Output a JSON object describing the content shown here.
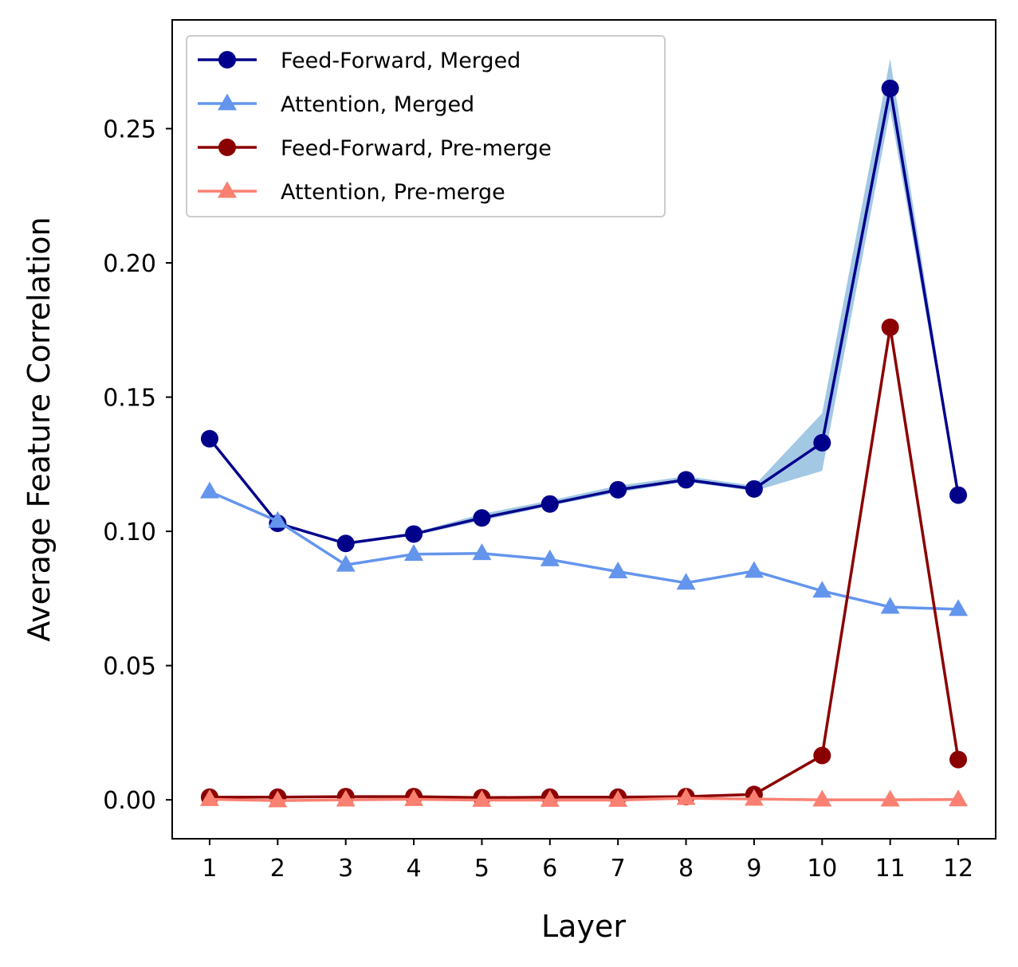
{
  "chart_data": {
    "type": "line",
    "title": "",
    "xlabel": "Layer",
    "ylabel": "Average Feature Correlation",
    "x": [
      1,
      2,
      3,
      4,
      5,
      6,
      7,
      8,
      9,
      10,
      11,
      12
    ],
    "xlim": [
      0.45,
      12.55
    ],
    "ylim": [
      -0.0145,
      0.2905
    ],
    "xticks": [
      "1",
      "2",
      "3",
      "4",
      "5",
      "6",
      "7",
      "8",
      "9",
      "10",
      "11",
      "12"
    ],
    "yticks": [
      "0.00",
      "0.05",
      "0.10",
      "0.15",
      "0.20",
      "0.25"
    ],
    "ytick_values": [
      0.0,
      0.05,
      0.1,
      0.15,
      0.2,
      0.25
    ],
    "grid": false,
    "legend_position": "top-left",
    "series": [
      {
        "name": "Feed-Forward, Merged",
        "marker": "circle",
        "color": "#00008b",
        "values": [
          0.1345,
          0.103,
          0.0955,
          0.099,
          0.105,
          0.1102,
          0.1155,
          0.1192,
          0.1158,
          0.133,
          0.265,
          0.1135
        ],
        "band": {
          "color": "#a3c8e4",
          "lower": [
            0.134,
            0.1025,
            0.095,
            0.0985,
            0.104,
            0.1095,
            0.1145,
            0.1185,
            0.115,
            0.1225,
            0.257,
            0.113
          ],
          "upper": [
            0.135,
            0.1035,
            0.096,
            0.0995,
            0.1065,
            0.1115,
            0.117,
            0.1205,
            0.117,
            0.144,
            0.276,
            0.114
          ]
        }
      },
      {
        "name": "Attention, Merged",
        "marker": "triangle",
        "color": "#6495ed",
        "values": [
          0.1148,
          0.1038,
          0.0875,
          0.0915,
          0.0918,
          0.0895,
          0.085,
          0.0808,
          0.0852,
          0.0778,
          0.0718,
          0.071
        ]
      },
      {
        "name": "Feed-Forward, Pre-merge",
        "marker": "circle",
        "color": "#8b0000",
        "values": [
          0.001,
          0.001,
          0.0012,
          0.0012,
          0.0008,
          0.001,
          0.001,
          0.0012,
          0.002,
          0.0165,
          0.176,
          0.015
        ]
      },
      {
        "name": "Attention, Pre-merge",
        "marker": "triangle",
        "color": "#fa8072",
        "values": [
          0.0002,
          -0.0003,
          0.0,
          0.0002,
          -0.0001,
          -0.0001,
          -0.0001,
          0.0006,
          0.0003,
          0.0,
          0.0,
          0.0001
        ]
      }
    ]
  }
}
